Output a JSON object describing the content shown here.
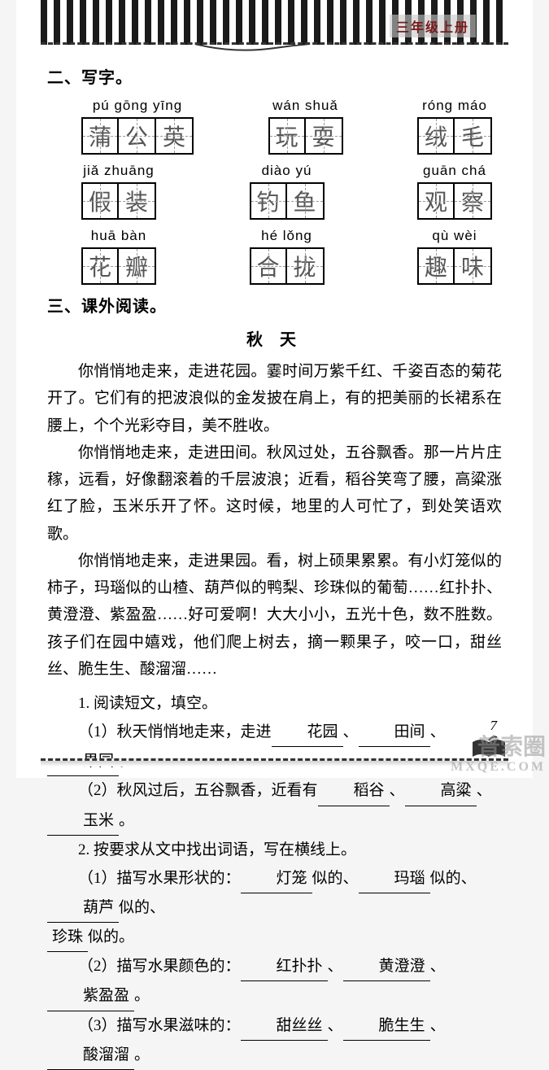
{
  "header_label": "三年级上册",
  "section2": "二、写字。",
  "section3": "三、课外阅读。",
  "words": [
    [
      {
        "pinyin": "pú  gōng  yīng",
        "chars": [
          "蒲",
          "公",
          "英"
        ]
      },
      {
        "pinyin": "wán  shuǎ",
        "chars": [
          "玩",
          "耍"
        ]
      },
      {
        "pinyin": "róng  máo",
        "chars": [
          "绒",
          "毛"
        ]
      }
    ],
    [
      {
        "pinyin": "jiǎ  zhuāng",
        "chars": [
          "假",
          "装"
        ]
      },
      {
        "pinyin": "diào  yú",
        "chars": [
          "钓",
          "鱼"
        ]
      },
      {
        "pinyin": "guān  chá",
        "chars": [
          "观",
          "察"
        ]
      }
    ],
    [
      {
        "pinyin": "huā  bàn",
        "chars": [
          "花",
          "瓣"
        ]
      },
      {
        "pinyin": "hé  lǒng",
        "chars": [
          "合",
          "拢"
        ]
      },
      {
        "pinyin": "qù  wèi",
        "chars": [
          "趣",
          "味"
        ]
      }
    ]
  ],
  "reading_title": "秋  天",
  "passage": [
    "你悄悄地走来，走进花园。霎时间万紫千红、千姿百态的菊花开了。它们有的把波浪似的金发披在肩上，有的把美丽的长裙系在腰上，个个光彩夺目，美不胜收。",
    "你悄悄地走来，走进田间。秋风过处，五谷飘香。那一片片庄稼，远看，好像翻滚着的千层波浪；近看，稻谷笑弯了腰，高粱涨红了脸，玉米乐开了怀。这时候，地里的人可忙了，到处笑语欢歌。",
    "你悄悄地走来，走进果园。看，树上硕果累累。有小灯笼似的柿子，玛瑙似的山楂、葫芦似的鸭梨、珍珠似的葡萄……红扑扑、黄澄澄、紫盈盈……好可爱啊！大大小小，五光十色，数不胜数。孩子们在园中嬉戏，他们爬上树去，摘一颗果子，咬一口，甜丝丝、脆生生、酸溜溜……"
  ],
  "q1": "1. 阅读短文，填空。",
  "q1_1": {
    "pre": "（1）秋天悄悄地走来，走进",
    "a": [
      "花园",
      "田间",
      "果园"
    ],
    "sep": "、",
    "tail": "。"
  },
  "q1_2": {
    "pre": "（2）秋风过后，五谷飘香，近看有",
    "a": [
      "稻谷",
      "高粱",
      "玉米"
    ],
    "sep": "、",
    "tail": "。"
  },
  "q2": "2. 按要求从文中找出词语，写在横线上。",
  "q2_1": {
    "pre": "（1）描写水果形状的：",
    "a": [
      "灯笼",
      "玛瑙",
      "葫芦",
      "珍珠"
    ],
    "unit": "似的",
    "tail": "。"
  },
  "q2_2": {
    "pre": "（2）描写水果颜色的：",
    "a": [
      "红扑扑",
      "黄澄澄",
      "紫盈盈"
    ],
    "sep": "、",
    "tail": "。"
  },
  "q2_3": {
    "pre": "（3）描写水果滋味的：",
    "a": [
      "甜丝丝",
      "脆生生",
      "酸溜溜"
    ],
    "sep": "、",
    "tail": "。"
  },
  "page_number": "7",
  "watermark_big": "普索圈",
  "watermark_small": "MXQE.COM",
  "colors": {
    "page_bg": "#ffffff",
    "body_bg": "#f5f5f5",
    "text": "#000000",
    "answer_font": "KaiTi",
    "border": "#000000",
    "dash": "#999999",
    "header_red": "#7a1a1a"
  }
}
